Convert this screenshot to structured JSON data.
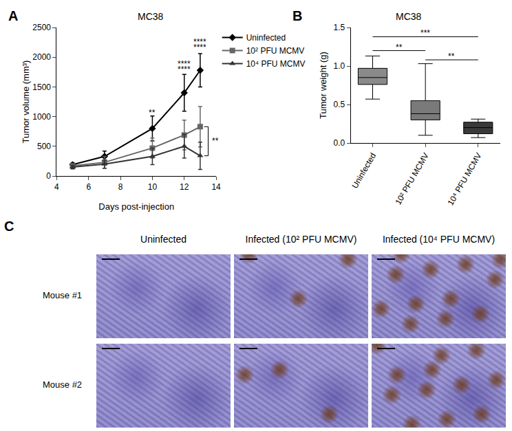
{
  "chart_data": [
    {
      "type": "line",
      "panel_label": "A",
      "title": "MC38",
      "x_label": "Days post-injection",
      "y_label": "Tumor volume (mm³)",
      "x": [
        5,
        7,
        10,
        12,
        13
      ],
      "series": [
        {
          "name": "Uninfected",
          "color": "#000000",
          "marker": "diamond",
          "values": [
            190,
            330,
            800,
            1400,
            1780
          ],
          "errors": [
            30,
            90,
            210,
            310,
            280
          ]
        },
        {
          "name": "10² PFU MCMV",
          "color": "#666666",
          "marker": "square",
          "values": [
            170,
            230,
            470,
            690,
            830
          ],
          "errors": [
            30,
            100,
            170,
            250,
            340
          ]
        },
        {
          "name": "10⁴ PFU MCMV",
          "color": "#333333",
          "marker": "triangle-up",
          "values": [
            150,
            200,
            330,
            500,
            340
          ],
          "errors": [
            30,
            70,
            140,
            200,
            230
          ]
        }
      ],
      "xlim": [
        4,
        14
      ],
      "xticks": [
        4,
        6,
        8,
        10,
        12,
        14
      ],
      "ylim": [
        0,
        2500
      ],
      "yticks": [
        0,
        500,
        1000,
        1500,
        2000,
        2500
      ],
      "grid": false,
      "legend": "upper right",
      "annotations": [
        {
          "x": 10,
          "y": 1060,
          "text": "**"
        },
        {
          "x": 12,
          "y": 1790,
          "text": "****"
        },
        {
          "x": 12,
          "y": 1890,
          "text": "****"
        },
        {
          "x": 13,
          "y": 2160,
          "text": "****"
        },
        {
          "x": 13,
          "y": 2260,
          "text": "****"
        }
      ],
      "brackets": [
        {
          "x": 13.5,
          "from": 340,
          "to": 830,
          "text": "**"
        }
      ]
    },
    {
      "type": "box",
      "panel_label": "B",
      "title": "MC38",
      "y_label": "Tumor weight (g)",
      "categories": [
        "Uninfected",
        "10² PFU MCMV",
        "10⁴ PFU MCMV"
      ],
      "colors": [
        "#8a8a8a",
        "#7a7a7a",
        "#3a3a3a"
      ],
      "boxes": [
        {
          "min": 0.57,
          "q1": 0.76,
          "median": 0.85,
          "q3": 0.97,
          "max": 1.13
        },
        {
          "min": 0.1,
          "q1": 0.3,
          "median": 0.38,
          "q3": 0.55,
          "max": 1.03
        },
        {
          "min": 0.07,
          "q1": 0.12,
          "median": 0.2,
          "q3": 0.27,
          "max": 0.31
        }
      ],
      "ylim": [
        0,
        1.5
      ],
      "yticks": [
        {
          "value": 0,
          "label": "0.0"
        },
        {
          "value": 0.5,
          "label": "0.5"
        },
        {
          "value": 1,
          "label": "1.0"
        },
        {
          "value": 1.5,
          "label": "1.5"
        }
      ],
      "grid": false,
      "brackets": [
        {
          "from": "Uninfected",
          "to": "10² PFU MCMV",
          "y": 1.2,
          "text": "**"
        },
        {
          "from": "Uninfected",
          "to": "10⁴ PFU MCMV",
          "y": 1.38,
          "text": "***"
        },
        {
          "from": "10² PFU MCMV",
          "to": "10⁴ PFU MCMV",
          "y": 1.08,
          "text": "**"
        }
      ]
    }
  ],
  "panel_c": {
    "panel_label": "C",
    "columns": [
      "Uninfected",
      "Infected (10² PFU MCMV)",
      "Infected (10⁴ PFU MCMV)"
    ],
    "rows": [
      "Mouse #1",
      "Mouse #2"
    ]
  }
}
